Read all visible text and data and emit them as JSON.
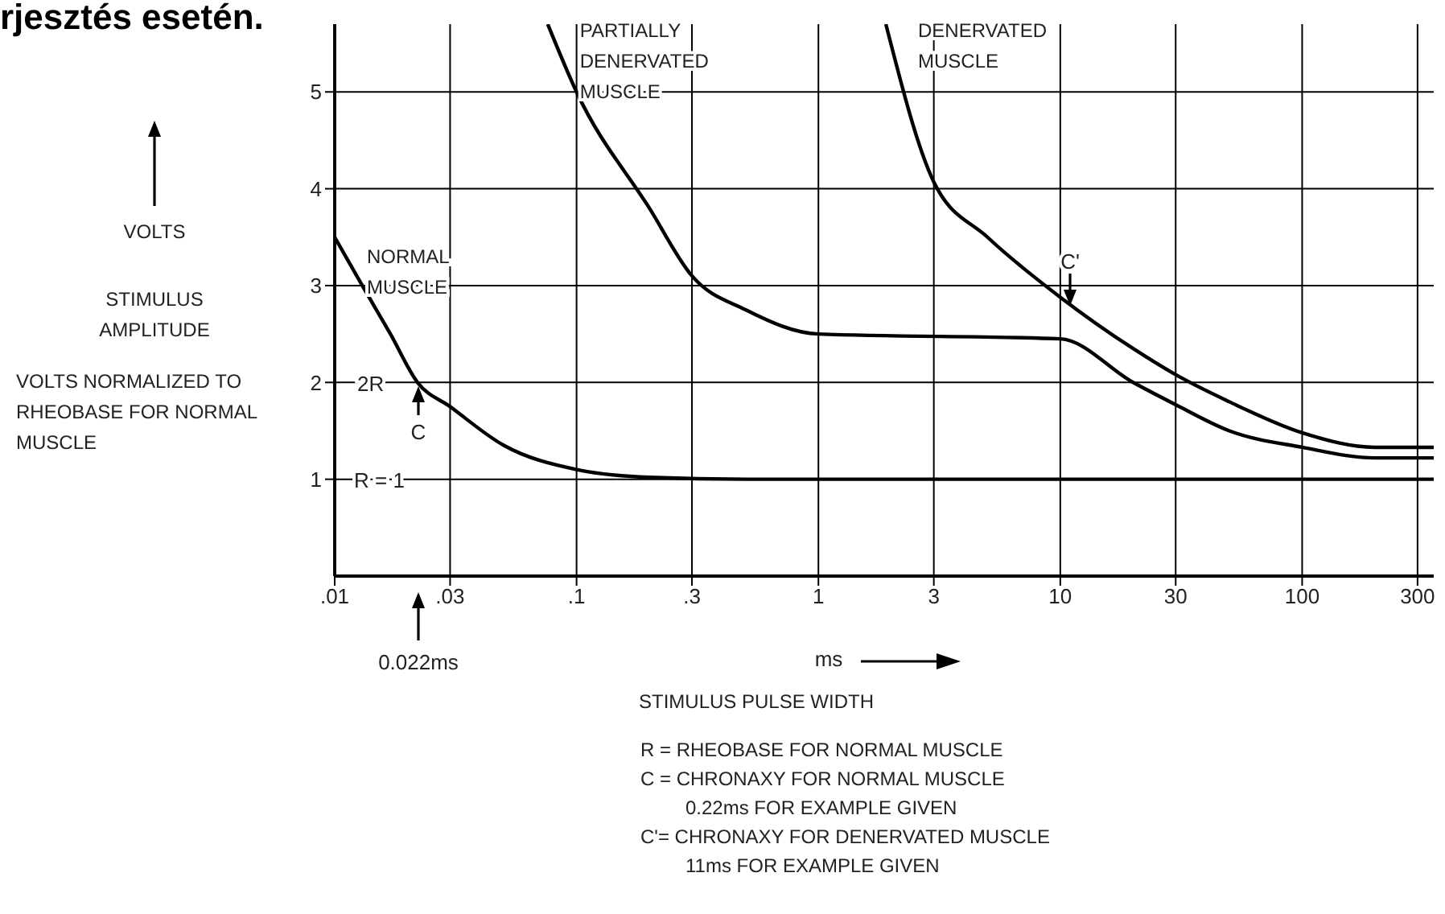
{
  "chart_data": {
    "type": "line",
    "title": "rjesztés esetén.",
    "xlabel": "ms\nSTIMULUS PULSE WIDTH",
    "ylabel": "VOLTS\nSTIMULUS AMPLITUDE\nVOLTS NORMALIZED TO RHEOBASE FOR NORMAL MUSCLE",
    "log": "x",
    "grid": true,
    "marker": "none",
    "line_style": "solid",
    "xlim": [
      0.01,
      350
    ],
    "xticks": [
      {
        "value": 0.01,
        "label": ".01"
      },
      {
        "value": 0.03,
        "label": ".03"
      },
      {
        "value": 0.1,
        "label": ".1"
      },
      {
        "value": 0.3,
        "label": ".3"
      },
      1,
      3,
      10,
      30,
      100,
      300
    ],
    "ylim": [
      0,
      5.7
    ],
    "yticks": [
      1,
      2,
      3,
      4,
      5
    ],
    "series": [
      {
        "name": "NORMAL MUSCLE",
        "color": "#000000",
        "x": [
          0.01,
          0.013,
          0.017,
          0.022,
          0.03,
          0.05,
          0.1,
          0.2,
          0.5,
          1,
          10,
          100,
          350
        ],
        "values": [
          3.5,
          3.0,
          2.5,
          2.0,
          1.75,
          1.35,
          1.1,
          1.02,
          1.0,
          1.0,
          1.0,
          1.0,
          1.0
        ]
      },
      {
        "name": "PARTIALLY DENERVATED MUSCLE",
        "color": "#000000",
        "x": [
          0.076,
          0.1,
          0.2,
          0.3,
          0.5,
          1,
          10,
          20,
          30,
          50,
          100,
          200,
          350
        ],
        "values": [
          5.7,
          5.0,
          3.8,
          3.1,
          2.75,
          2.5,
          2.45,
          2.0,
          1.77,
          1.5,
          1.33,
          1.22,
          1.22
        ]
      },
      {
        "name": "DENERVATED MUSCLE",
        "color": "#000000",
        "x": [
          1.9,
          3,
          5,
          10,
          20,
          30,
          50,
          100,
          200,
          350
        ],
        "values": [
          5.7,
          4.07,
          3.5,
          2.88,
          2.35,
          2.08,
          1.8,
          1.48,
          1.33,
          1.33
        ]
      }
    ],
    "annotations": [
      "2R",
      "C",
      "R = 1",
      "C'",
      "0.022ms",
      "R = RHEOBASE FOR NORMAL MUSCLE",
      "C = CHRONAXY FOR NORMAL MUSCLE\n0.22ms FOR EXAMPLE GIVEN",
      "C'= CHRONAXY FOR DENERVATED MUSCLE\n11ms FOR EXAMPLE GIVEN"
    ]
  }
}
